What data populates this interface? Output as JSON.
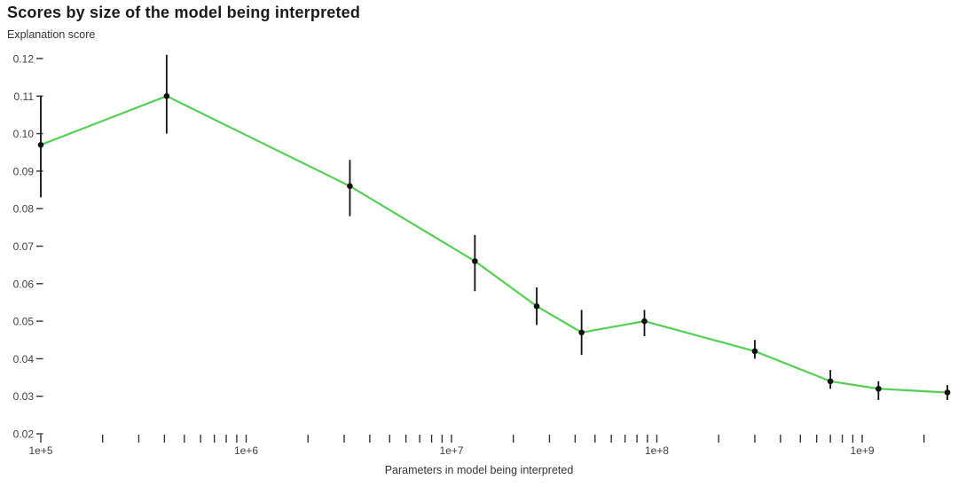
{
  "chart_data": {
    "type": "line",
    "title": "Scores by size of the model being interpreted",
    "ylabel": "Explanation score",
    "xlabel": "Parameters in model being interpreted",
    "x_scale": "log",
    "x_range": [
      100000,
      3000000000
    ],
    "y_range": [
      0.02,
      0.12
    ],
    "grid": false,
    "legend": false,
    "x_axis": {
      "major_ticks": [
        {
          "value": 100000,
          "label": "1e+5"
        },
        {
          "value": 1000000,
          "label": "1e+6"
        },
        {
          "value": 10000000,
          "label": "1e+7"
        },
        {
          "value": 100000000,
          "label": "1e+8"
        },
        {
          "value": 1000000000,
          "label": "1e+9"
        }
      ],
      "ticks": [
        100000,
        200000,
        300000,
        400000,
        500000,
        600000,
        700000,
        800000,
        900000,
        1000000,
        2000000,
        3000000,
        4000000,
        5000000,
        6000000,
        7000000,
        8000000,
        9000000,
        10000000,
        20000000,
        30000000,
        40000000,
        50000000,
        60000000,
        70000000,
        80000000,
        90000000,
        100000000,
        200000000,
        300000000,
        400000000,
        500000000,
        600000000,
        700000000,
        800000000,
        900000000,
        1000000000,
        2000000000
      ]
    },
    "y_axis": {
      "ticks": [
        0.02,
        0.03,
        0.04,
        0.05,
        0.06,
        0.07,
        0.08,
        0.09,
        0.1,
        0.11,
        0.12
      ]
    },
    "series": [
      {
        "name": "Explanation score",
        "color": "#53d053",
        "marker_color": "#111111",
        "points": [
          {
            "x": 100000,
            "y": 0.097,
            "err_low": 0.083,
            "err_high": 0.11
          },
          {
            "x": 410000,
            "y": 0.11,
            "err_low": 0.1,
            "err_high": 0.121
          },
          {
            "x": 3200000,
            "y": 0.086,
            "err_low": 0.078,
            "err_high": 0.093
          },
          {
            "x": 13000000,
            "y": 0.066,
            "err_low": 0.058,
            "err_high": 0.073
          },
          {
            "x": 26000000,
            "y": 0.054,
            "err_low": 0.049,
            "err_high": 0.059
          },
          {
            "x": 43000000,
            "y": 0.047,
            "err_low": 0.041,
            "err_high": 0.053
          },
          {
            "x": 87000000,
            "y": 0.05,
            "err_low": 0.046,
            "err_high": 0.053
          },
          {
            "x": 300000000,
            "y": 0.042,
            "err_low": 0.04,
            "err_high": 0.045
          },
          {
            "x": 700000000,
            "y": 0.034,
            "err_low": 0.032,
            "err_high": 0.037
          },
          {
            "x": 1200000000,
            "y": 0.032,
            "err_low": 0.029,
            "err_high": 0.034
          },
          {
            "x": 2600000000,
            "y": 0.031,
            "err_low": 0.029,
            "err_high": 0.033
          }
        ]
      }
    ]
  }
}
